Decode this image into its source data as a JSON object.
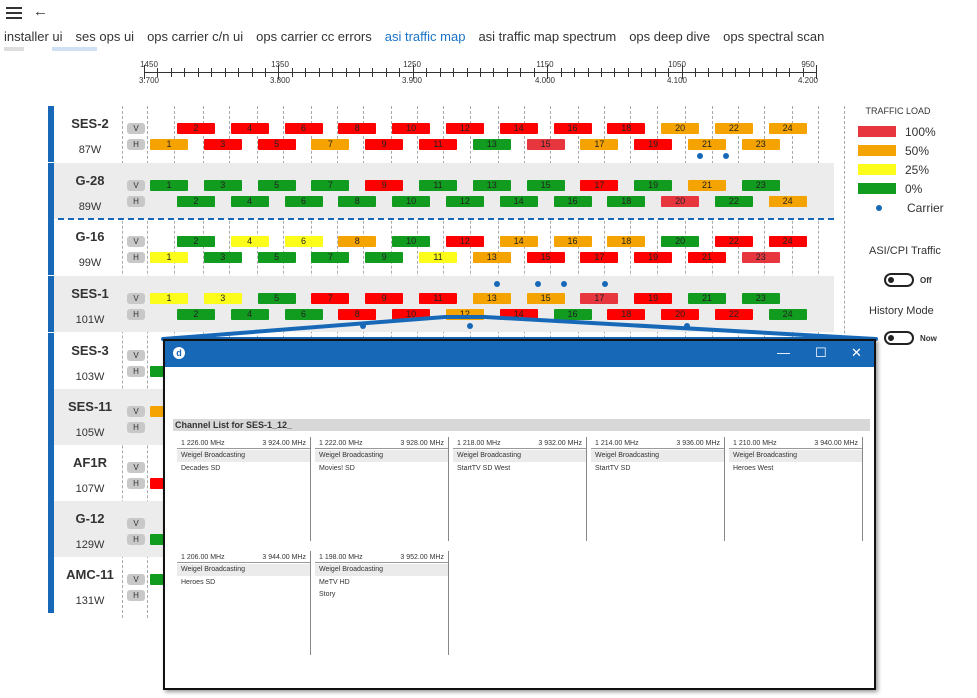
{
  "nav": {
    "menu_icon": "hamburger-icon",
    "back_icon": "back-arrow-icon",
    "tabs": [
      {
        "label": "installer ui",
        "active": false
      },
      {
        "label": "ses ops ui",
        "active": false
      },
      {
        "label": "ops carrier c/n ui",
        "active": false
      },
      {
        "label": "ops carrier cc errors",
        "active": false
      },
      {
        "label": "asi traffic map",
        "active": true
      },
      {
        "label": "asi traffic map spectrum",
        "active": false
      },
      {
        "label": "ops deep dive",
        "active": false
      },
      {
        "label": "ops spectral scan",
        "active": false
      }
    ]
  },
  "scale": {
    "top_labels": [
      "1450",
      "1350",
      "1250",
      "1150",
      "1050",
      "950"
    ],
    "bottom_labels": [
      "3.700",
      "3.800",
      "3.900",
      "4.000",
      "4.100",
      "4.200"
    ]
  },
  "colors": {
    "100": "#e8363e",
    "50": "#f5a300",
    "25": "#fdfd1b",
    "0": "#119b1f",
    "red_strong": "#ff0000",
    "accent": "#1769b8"
  },
  "satellites": [
    {
      "name": "SES-2",
      "position": "87W",
      "alt": false,
      "v": [
        [
          "2",
          "r"
        ],
        [
          "4",
          "r"
        ],
        [
          "6",
          "r"
        ],
        [
          "8",
          "r"
        ],
        [
          "10",
          "r"
        ],
        [
          "12",
          "r"
        ],
        [
          "14",
          "r"
        ],
        [
          "16",
          "r"
        ],
        [
          "18",
          "r"
        ],
        [
          "20",
          "o"
        ],
        [
          "22",
          "o"
        ],
        [
          "24",
          "o"
        ]
      ],
      "h": [
        [
          "1",
          "o"
        ],
        [
          "3",
          "r"
        ],
        [
          "5",
          "r"
        ],
        [
          "7",
          "o"
        ],
        [
          "9",
          "r"
        ],
        [
          "11",
          "r"
        ],
        [
          "13",
          "g"
        ],
        [
          "15",
          "p"
        ],
        [
          "17",
          "o"
        ],
        [
          "19",
          "r"
        ],
        [
          "21",
          "o"
        ],
        [
          "23",
          "o"
        ]
      ],
      "carriers": [
        22.5,
        23.5
      ]
    },
    {
      "name": "G-28",
      "position": "89W",
      "alt": true,
      "v": [
        [
          "1",
          "g"
        ],
        [
          "3",
          "g"
        ],
        [
          "5",
          "g"
        ],
        [
          "7",
          "g"
        ],
        [
          "9",
          "r"
        ],
        [
          "11",
          "g"
        ],
        [
          "13",
          "g"
        ],
        [
          "15",
          "g"
        ],
        [
          "17",
          "r"
        ],
        [
          "19",
          "g"
        ],
        [
          "21",
          "o"
        ],
        [
          "23",
          "g"
        ]
      ],
      "h": [
        [
          "2",
          "g"
        ],
        [
          "4",
          "g"
        ],
        [
          "6",
          "g"
        ],
        [
          "8",
          "g"
        ],
        [
          "10",
          "g"
        ],
        [
          "12",
          "g"
        ],
        [
          "14",
          "g"
        ],
        [
          "16",
          "g"
        ],
        [
          "18",
          "g"
        ],
        [
          "20",
          "p"
        ],
        [
          "22",
          "g"
        ],
        [
          "24",
          "o"
        ]
      ],
      "carriers": []
    },
    {
      "name": "G-16",
      "position": "99W",
      "alt": false,
      "v": [
        [
          "2",
          "g"
        ],
        [
          "4",
          "y"
        ],
        [
          "6",
          "y"
        ],
        [
          "8",
          "o"
        ],
        [
          "10",
          "g"
        ],
        [
          "12",
          "r"
        ],
        [
          "14",
          "o"
        ],
        [
          "16",
          "o"
        ],
        [
          "18",
          "o"
        ],
        [
          "20",
          "g"
        ],
        [
          "22",
          "r"
        ],
        [
          "24",
          "r"
        ]
      ],
      "h": [
        [
          "1",
          "y"
        ],
        [
          "3",
          "g"
        ],
        [
          "5",
          "g"
        ],
        [
          "7",
          "g"
        ],
        [
          "9",
          "g"
        ],
        [
          "11",
          "y"
        ],
        [
          "13",
          "o"
        ],
        [
          "15",
          "r"
        ],
        [
          "17",
          "r"
        ],
        [
          "19",
          "r"
        ],
        [
          "21",
          "r"
        ],
        [
          "23",
          "p"
        ]
      ],
      "carriers": []
    },
    {
      "name": "SES-1",
      "position": "101W",
      "alt": true,
      "v": [
        [
          "1",
          "y"
        ],
        [
          "3",
          "y"
        ],
        [
          "5",
          "g"
        ],
        [
          "7",
          "r"
        ],
        [
          "9",
          "r"
        ],
        [
          "11",
          "r"
        ],
        [
          "13",
          "o"
        ],
        [
          "15",
          "o"
        ],
        [
          "17",
          "p"
        ],
        [
          "19",
          "r"
        ],
        [
          "21",
          "g"
        ],
        [
          "23",
          "g"
        ]
      ],
      "h": [
        [
          "2",
          "g"
        ],
        [
          "4",
          "g"
        ],
        [
          "6",
          "g"
        ],
        [
          "8",
          "r"
        ],
        [
          "10",
          "r"
        ],
        [
          "12",
          "o"
        ],
        [
          "14",
          "r"
        ],
        [
          "16",
          "g"
        ],
        [
          "18",
          "r"
        ],
        [
          "20",
          "r"
        ],
        [
          "22",
          "r"
        ],
        [
          "24",
          "g"
        ]
      ],
      "carriers": [
        15,
        17,
        17.5,
        19,
        10,
        14,
        22
      ]
    },
    {
      "name": "SES-3",
      "position": "103W",
      "alt": false,
      "v": [],
      "h": [
        [
          "1",
          "g"
        ]
      ],
      "carriers": []
    },
    {
      "name": "SES-11",
      "position": "105W",
      "alt": true,
      "v": [
        [
          "1",
          "o"
        ]
      ],
      "h": [],
      "carriers": []
    },
    {
      "name": "AF1R",
      "position": "107W",
      "alt": false,
      "v": [],
      "h": [
        [
          "1",
          "r"
        ]
      ],
      "carriers": []
    },
    {
      "name": "G-12",
      "position": "129W",
      "alt": true,
      "v": [],
      "h": [
        [
          "1",
          "g"
        ]
      ],
      "carriers": []
    },
    {
      "name": "AMC-11",
      "position": "131W",
      "alt": false,
      "v": [
        [
          "1",
          "g"
        ]
      ],
      "h": [],
      "carriers": []
    }
  ],
  "vh": {
    "v": "V",
    "h": "H"
  },
  "legend": {
    "title": "TRAFFIC LOAD",
    "items": [
      {
        "label": "100%",
        "color": "#e8363e"
      },
      {
        "label": "50%",
        "color": "#f5a300"
      },
      {
        "label": "25%",
        "color": "#fdfd1b"
      },
      {
        "label": "0%",
        "color": "#119b1f"
      }
    ],
    "carrier_label": "Carrier"
  },
  "toggles": [
    {
      "label": "ASI/CPI Traffic",
      "state": "Off"
    },
    {
      "label": "History Mode",
      "state": "Now"
    }
  ],
  "popup": {
    "window_controls": {
      "min": "—",
      "max": "☐",
      "close": "✕"
    },
    "header": "Channel List for SES-1_12_",
    "cards": [
      {
        "f1": "1 226.00 MHz",
        "f2": "3 924.00 MHz",
        "provider": "Weigel Broadcasting",
        "channels": [
          "Decades SD"
        ]
      },
      {
        "f1": "1 222.00 MHz",
        "f2": "3 928.00 MHz",
        "provider": "Weigel Broadcasting",
        "channels": [
          "Movies! SD"
        ]
      },
      {
        "f1": "1 218.00 MHz",
        "f2": "3 932.00 MHz",
        "provider": "Weigel Broadcasting",
        "channels": [
          "StartTV SD West"
        ]
      },
      {
        "f1": "1 214.00 MHz",
        "f2": "3 936.00 MHz",
        "provider": "Weigel Broadcasting",
        "channels": [
          "StartTV SD"
        ]
      },
      {
        "f1": "1 210.00 MHz",
        "f2": "3 940.00 MHz",
        "provider": "Weigel Broadcasting",
        "channels": [
          "Heroes West"
        ]
      },
      {
        "f1": "1 206.00 MHz",
        "f2": "3 944.00 MHz",
        "provider": "Weigel Broadcasting",
        "channels": [
          "Heroes SD"
        ]
      },
      {
        "f1": "1 198.00 MHz",
        "f2": "3 952.00 MHz",
        "provider": "Weigel Broadcasting",
        "channels": [
          "MeTV HD",
          "Story"
        ]
      }
    ]
  }
}
